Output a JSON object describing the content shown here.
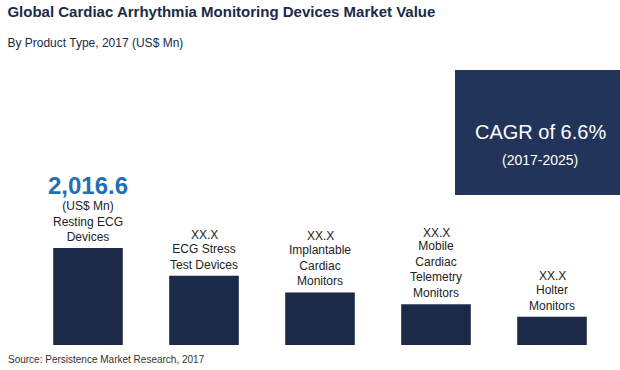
{
  "chart_data": {
    "type": "bar",
    "title": "Global Cardiac Arrhythmia Monitoring Devices Market Value",
    "subtitle": "By Product Type, 2017 (US$ Mn)",
    "categories": [
      "Resting ECG Devices",
      "ECG Stress Test Devices",
      "Implantable Cardiac Monitors",
      "Mobile Cardiac Telemetry Monitors",
      "Holter Monitors"
    ],
    "values": [
      2016.6,
      1442,
      1093,
      845,
      586
    ],
    "value_labels": [
      "2,016.6",
      "XX.X",
      "XX.X",
      "XX.X",
      "XX.X"
    ],
    "color": "#1b2a48",
    "data_labels": true,
    "tick_labels": false,
    "grid": false,
    "annotations": [
      "(US$ Mn)",
      "CAGR of 6.6%",
      "(2017-2025)"
    ],
    "source": "Source: Persistence Market Research, 2017"
  }
}
